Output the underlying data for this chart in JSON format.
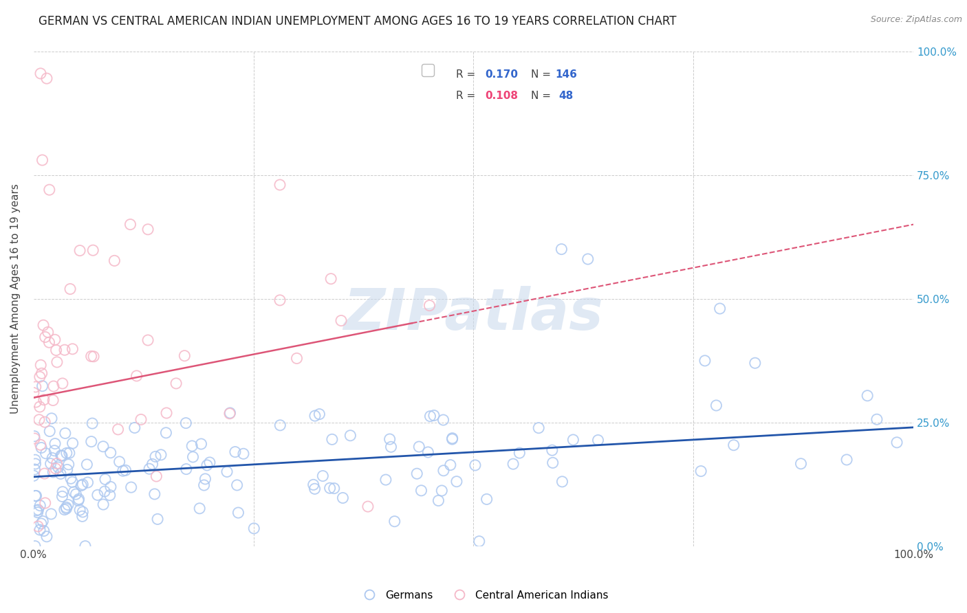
{
  "title": "GERMAN VS CENTRAL AMERICAN INDIAN UNEMPLOYMENT AMONG AGES 16 TO 19 YEARS CORRELATION CHART",
  "source": "Source: ZipAtlas.com",
  "ylabel": "Unemployment Among Ages 16 to 19 years",
  "watermark": "ZIPatlas",
  "xlim": [
    0.0,
    1.0
  ],
  "ylim": [
    0.0,
    1.0
  ],
  "german_color": "#adc8f0",
  "german_edge": "#6699cc",
  "pink_color": "#f5b8c8",
  "pink_edge": "#e07898",
  "german_R": 0.17,
  "german_N": 146,
  "pink_R": 0.108,
  "pink_N": 48,
  "german_line_color": "#2255aa",
  "pink_line_color": "#dd5577",
  "background_color": "#ffffff",
  "grid_color": "#cccccc",
  "title_fontsize": 12,
  "legend_R_color_german": "#3366cc",
  "legend_R_color_pink": "#ee4477",
  "legend_N_color": "#3366cc",
  "right_tick_color": "#3399cc",
  "seed": 12
}
